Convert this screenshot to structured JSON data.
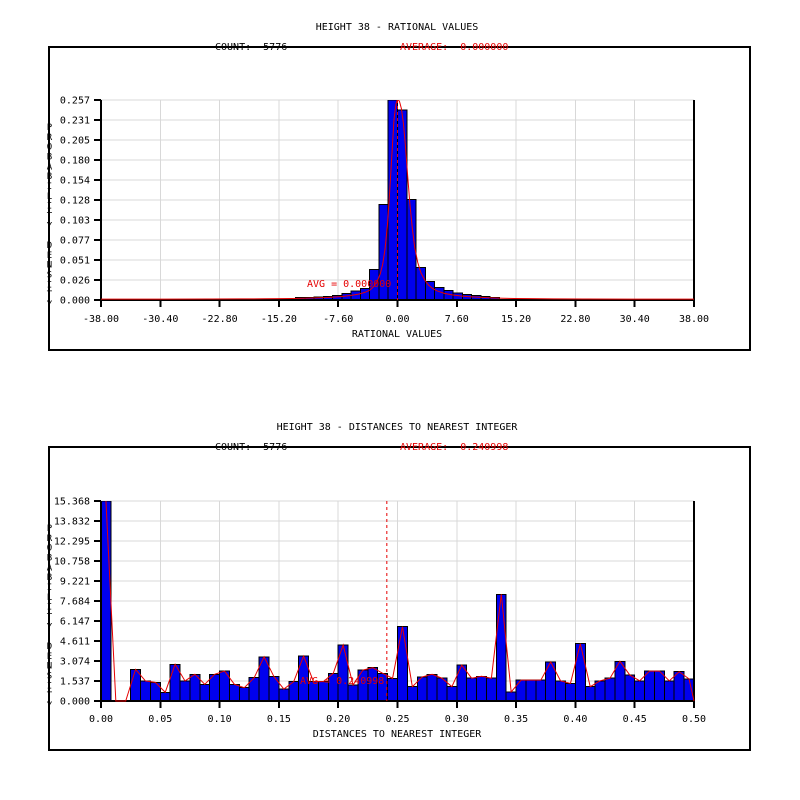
{
  "colors": {
    "background": "#ffffff",
    "bar_fill": "#0000ee",
    "bar_border": "#000000",
    "curve_red": "#e60000",
    "grid_gray": "#d8d8d8",
    "axis_black": "#000000",
    "text_black": "#000000",
    "text_red": "#e60000"
  },
  "chart_data": [
    {
      "type": "bar+line",
      "title": "HEIGHT 38 - RATIONAL VALUES",
      "count_label": "COUNT:  5776",
      "average_label": "AVERAGE:  0.000000",
      "avg_annotation": "AVG = 0.000000",
      "xlabel": "RATIONAL VALUES",
      "ylabel": "PROBABILITY DENSITY",
      "xlim": [
        -38,
        38
      ],
      "ylim": [
        0,
        0.2571
      ],
      "average_value": 0.0,
      "x_ticks": [
        "-38.00",
        "-30.40",
        "-22.80",
        "-15.20",
        "-7.60",
        "0.00",
        "7.60",
        "15.20",
        "22.80",
        "30.40",
        "38.00"
      ],
      "y_ticks": [
        "0.257",
        "0.231",
        "0.205",
        "0.180",
        "0.154",
        "0.128",
        "0.103",
        "0.077",
        "0.051",
        "0.026",
        "0.000"
      ],
      "bins": {
        "start": -13.0625,
        "width": 1.1875,
        "values": [
          0.003,
          0.0035,
          0.004,
          0.0045,
          0.0055,
          0.0085,
          0.0115,
          0.015,
          0.039,
          0.123,
          0.257,
          0.244,
          0.129,
          0.042,
          0.024,
          0.016,
          0.012,
          0.009,
          0.007,
          0.0055,
          0.0045,
          0.0035
        ]
      },
      "curve": {
        "mode": "points",
        "x": [
          -38,
          -30,
          -24,
          -20,
          -17,
          -15,
          -13.5,
          -12,
          -10.5,
          -9,
          -8,
          -7,
          -6,
          -5,
          -4.5,
          -4,
          -3.5,
          -3,
          -2.6,
          -2.2,
          -1.9,
          -1.6,
          -1.3,
          -1.0,
          -0.7,
          -0.45,
          -0.2,
          0,
          0.25,
          0.5,
          0.75,
          1.0,
          1.3,
          1.6,
          1.9,
          2.2,
          2.6,
          3.0,
          3.5,
          4.0,
          4.5,
          5,
          6,
          7,
          8,
          9,
          10.5,
          12,
          13.5,
          15,
          17,
          20,
          24,
          30,
          38
        ],
        "y": [
          0.0011,
          0.0012,
          0.0013,
          0.0014,
          0.0016,
          0.0018,
          0.002,
          0.0023,
          0.0027,
          0.0032,
          0.0038,
          0.0046,
          0.0058,
          0.0075,
          0.0088,
          0.0105,
          0.013,
          0.018,
          0.024,
          0.034,
          0.046,
          0.065,
          0.095,
          0.14,
          0.19,
          0.232,
          0.252,
          0.258,
          0.2555,
          0.246,
          0.228,
          0.2,
          0.16,
          0.122,
          0.092,
          0.068,
          0.048,
          0.035,
          0.0255,
          0.019,
          0.0148,
          0.012,
          0.0085,
          0.0066,
          0.0053,
          0.0044,
          0.0035,
          0.0028,
          0.0023,
          0.002,
          0.0017,
          0.0014,
          0.0013,
          0.0012,
          0.0011
        ]
      }
    },
    {
      "type": "bar+line",
      "title": "HEIGHT 38 - DISTANCES TO NEAREST INTEGER",
      "count_label": "COUNT:  5776",
      "average_label": "AVERAGE:  0.240998",
      "avg_annotation": "AVG = 0.240998",
      "xlabel": "DISTANCES TO NEAREST INTEGER",
      "ylabel": "PROBABILITY DENSITY",
      "xlim": [
        0,
        0.5
      ],
      "ylim": [
        0,
        15.368
      ],
      "average_value": 0.240998,
      "x_ticks": [
        "0.00",
        "0.05",
        "0.10",
        "0.15",
        "0.20",
        "0.25",
        "0.30",
        "0.35",
        "0.40",
        "0.45",
        "0.50"
      ],
      "y_ticks": [
        "15.368",
        "13.832",
        "12.295",
        "10.758",
        "9.221",
        "7.684",
        "6.147",
        "4.611",
        "3.074",
        "1.537",
        "0.000"
      ],
      "bins": {
        "start": 0,
        "width": 0.0083333,
        "values": [
          15.368,
          0,
          0,
          2.43,
          1.54,
          1.43,
          0.67,
          2.82,
          1.54,
          2.05,
          1.28,
          2.05,
          2.3,
          1.28,
          1.02,
          1.79,
          3.4,
          1.87,
          0.92,
          1.49,
          3.45,
          1.49,
          1.49,
          2.13,
          4.3,
          1.23,
          2.38,
          2.56,
          2.13,
          1.74,
          5.71,
          1.1,
          1.85,
          2.05,
          1.75,
          1.1,
          2.75,
          1.75,
          1.9,
          1.75,
          8.2,
          0.7,
          1.6,
          1.6,
          1.6,
          3.0,
          1.55,
          1.35,
          4.4,
          1.1,
          1.55,
          1.75,
          3.05,
          2.0,
          1.55,
          2.3,
          2.3,
          1.55,
          2.25,
          1.7
        ],
        "zero_is_gap": true
      },
      "curve": {
        "mode": "bar_tops",
        "end_x": 0.5,
        "end_y": 0
      }
    }
  ]
}
